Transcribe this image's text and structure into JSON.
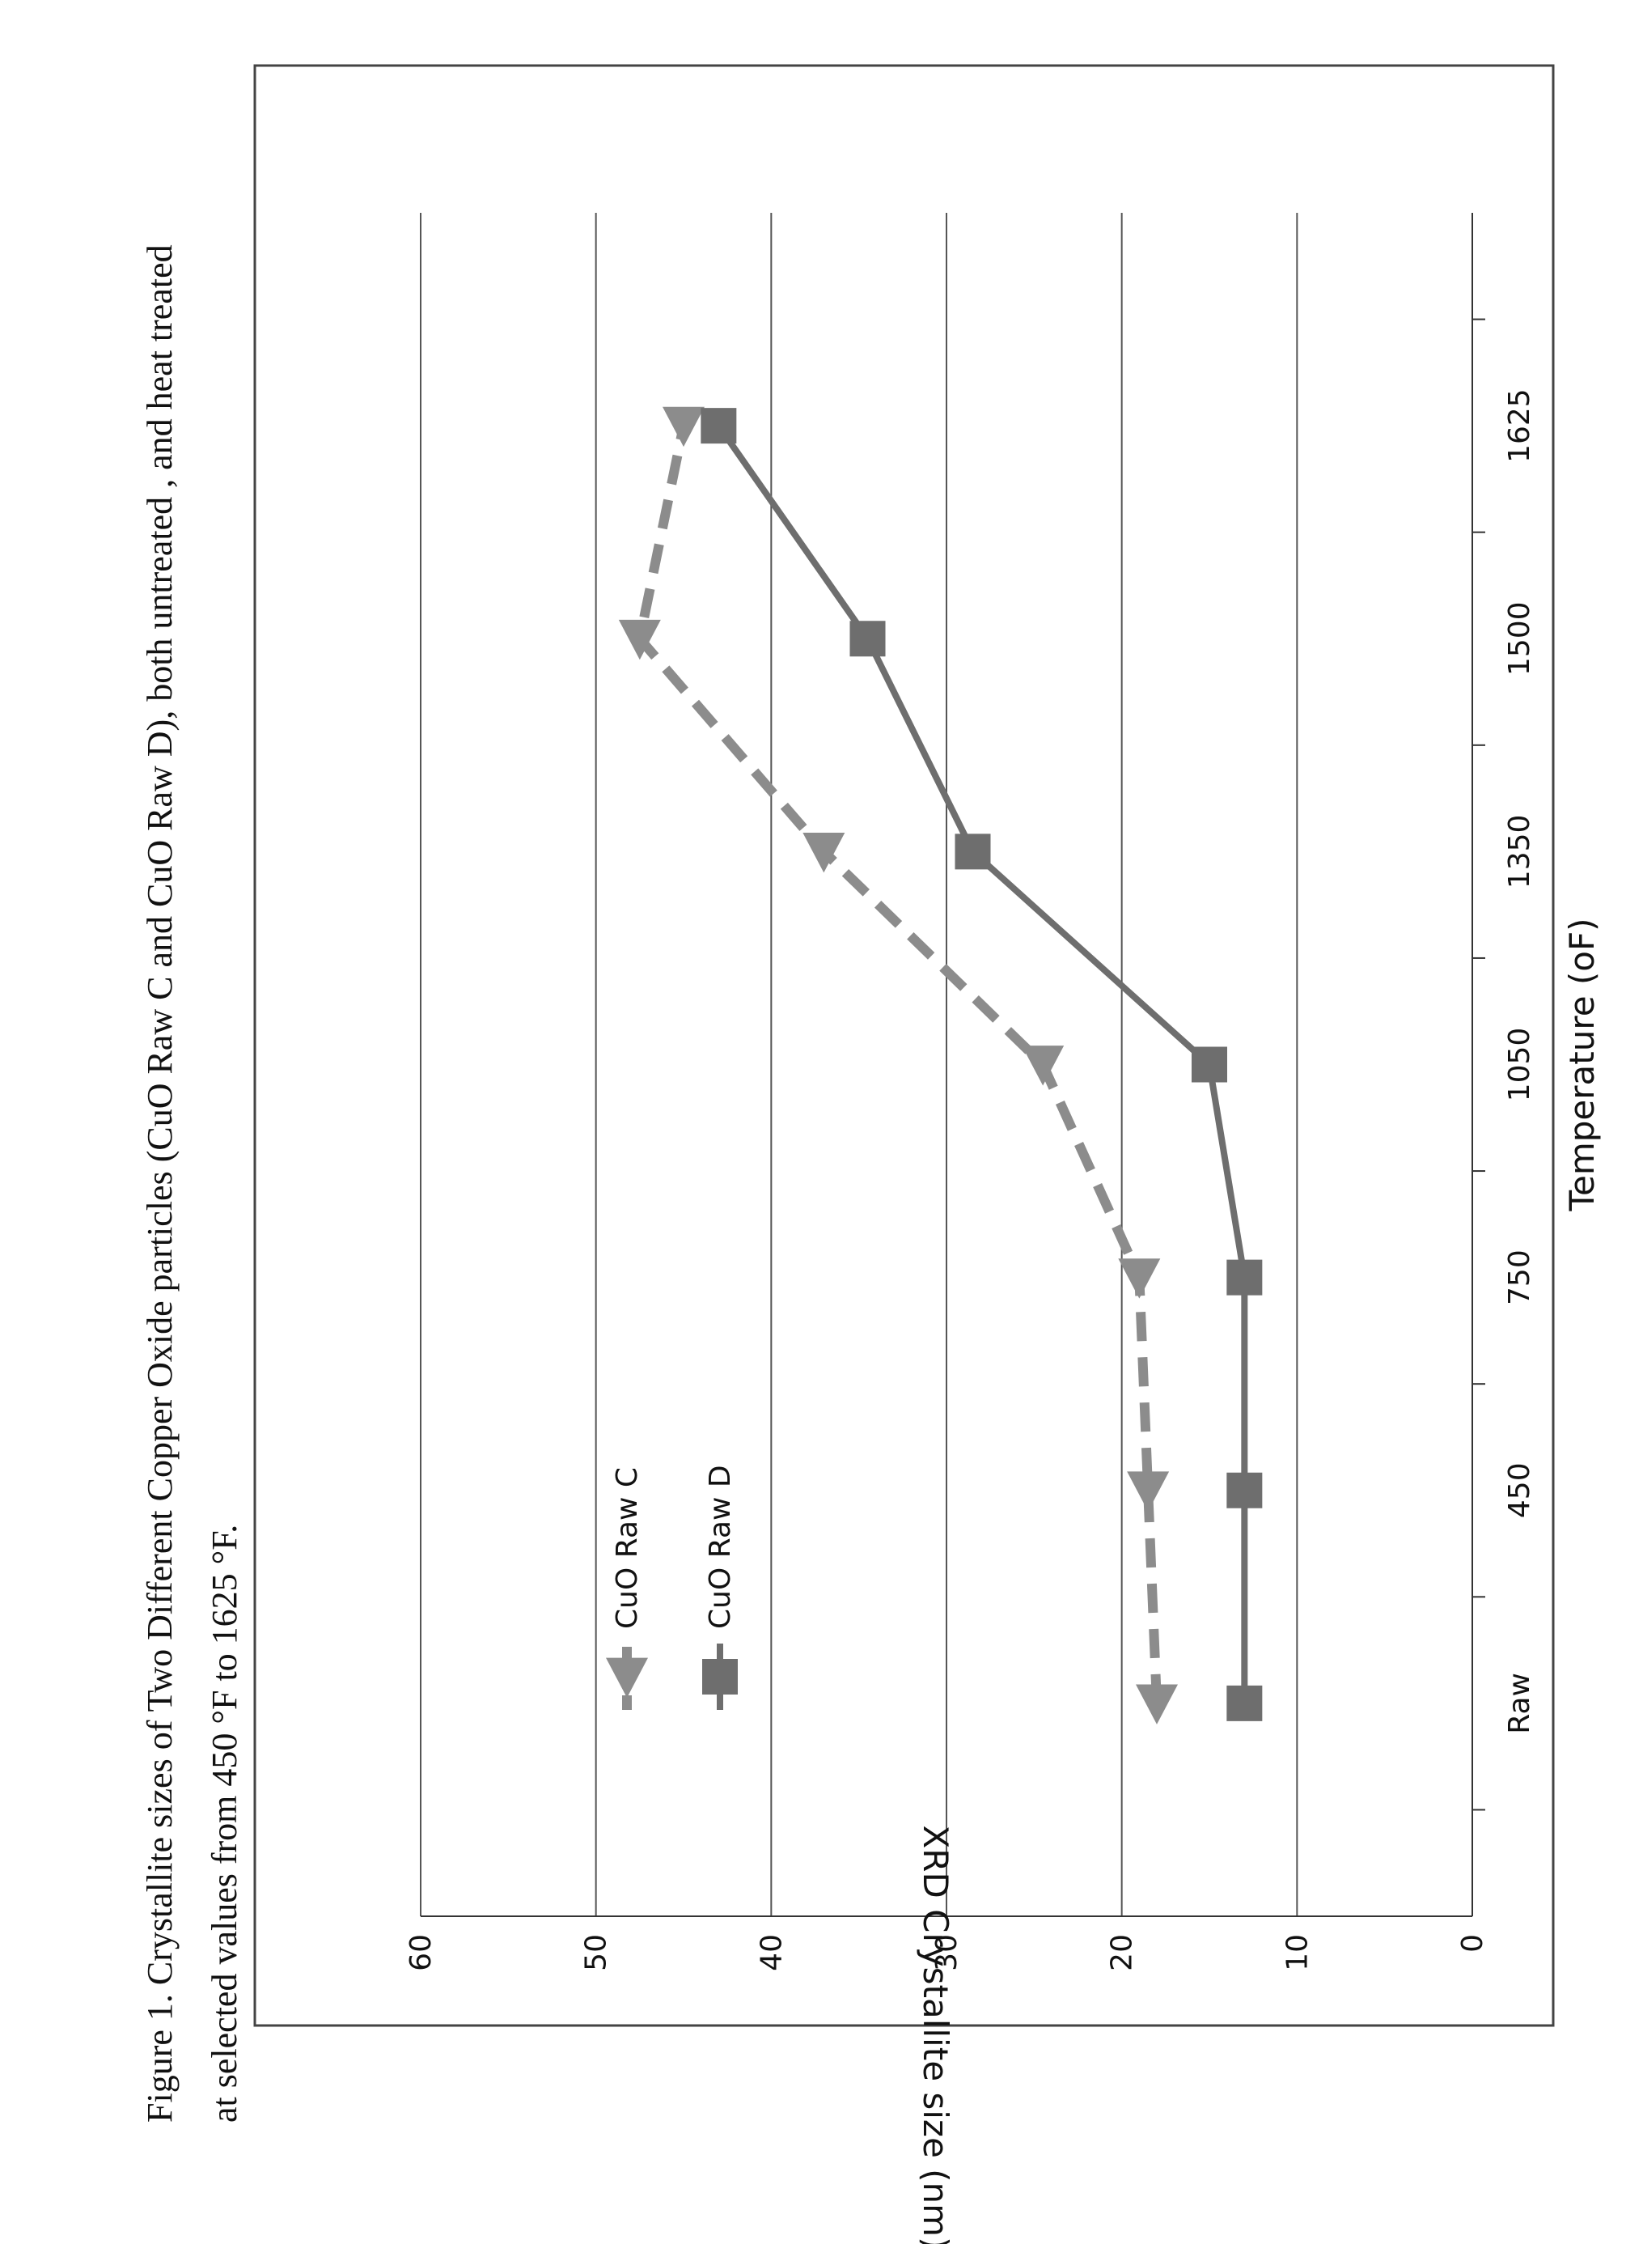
{
  "figure": {
    "caption_line1": "Figure 1.  Crystallite sizes of Two Different Copper Oxide particles (CuO Raw C and CuO Raw D), both untreated , and heat treated",
    "caption_line2": "at selected values from 450 °F to 1625 °F."
  },
  "chart_data": {
    "type": "line",
    "title": "",
    "xlabel": "Temperature (oF)",
    "ylabel": "XRD Crystallite size  (nm)",
    "categories": [
      "Raw",
      "450",
      "750",
      "1050",
      "1350",
      "1500",
      "1625"
    ],
    "ylim": [
      0,
      60
    ],
    "yticks": [
      0,
      10,
      20,
      30,
      40,
      50,
      60
    ],
    "grid": true,
    "legend_position": "top-left",
    "series": [
      {
        "name": "CuO Raw C",
        "marker": "triangle",
        "line_style": "dashed",
        "color": "#8c8c8c",
        "values": [
          18,
          18.5,
          19,
          24.5,
          37,
          47.5,
          45
        ]
      },
      {
        "name": "CuO Raw D",
        "marker": "square",
        "line_style": "solid",
        "color": "#6e6e6e",
        "values": [
          13,
          13,
          13,
          15,
          28.5,
          34.5,
          43
        ]
      }
    ]
  }
}
